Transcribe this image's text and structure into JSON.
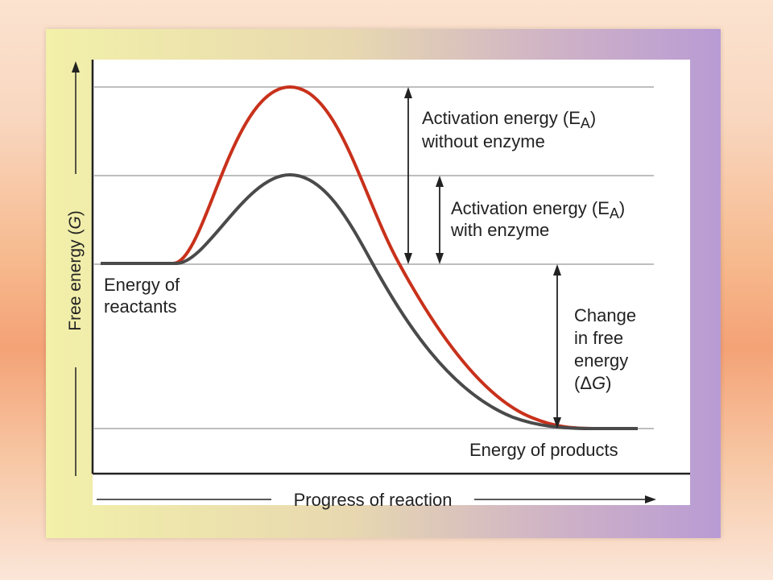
{
  "diagram": {
    "y_axis_label": "Free energy (G)",
    "x_axis_label": "Progress of reaction",
    "reactants_label_line1": "Energy of",
    "reactants_label_line2": "reactants",
    "products_label": "Energy of products",
    "ea_without_line1": "Activation energy (E",
    "ea_without_sub": "A",
    "ea_without_close": ")",
    "ea_without_line2": "without enzyme",
    "ea_with_line1": "Activation energy (E",
    "ea_with_sub": "A",
    "ea_with_close": ")",
    "ea_with_line2": "with enzyme",
    "dg_line1": "Change",
    "dg_line2": "in free",
    "dg_line3": "energy",
    "dg_line4_open": "(Δ",
    "dg_line4_g": "G",
    "dg_line4_close": ")",
    "colors": {
      "without_enzyme_curve": "#c8311b",
      "with_enzyme_curve": "#4a4a4a",
      "gridline": "#a8a8a8",
      "axis": "#222222"
    }
  }
}
